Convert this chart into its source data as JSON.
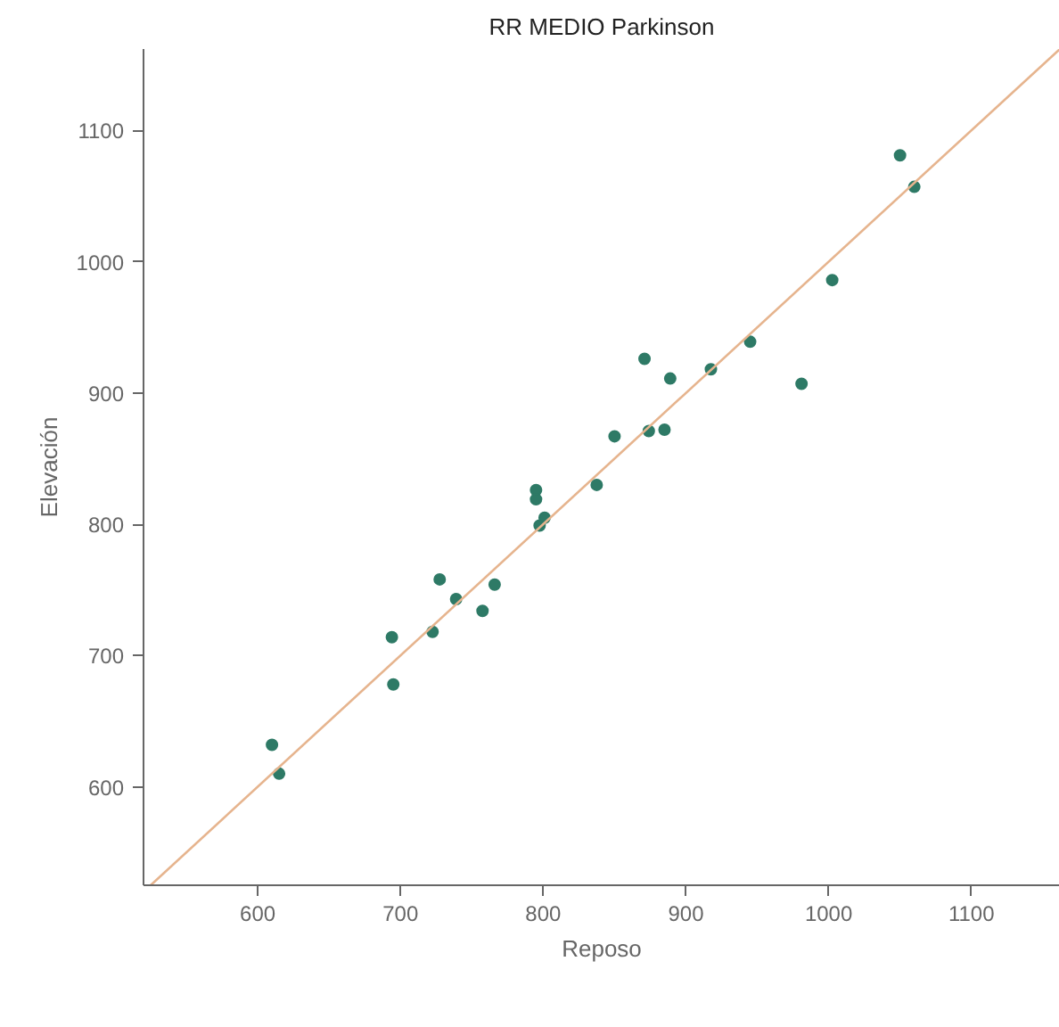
{
  "chart_data": {
    "type": "scatter",
    "title": "RR MEDIO Parkinson",
    "xlabel": "Reposo",
    "ylabel": "Elevación",
    "xlim": [
      520,
      1162
    ],
    "ylim": [
      525,
      1162
    ],
    "xticks": [
      600,
      700,
      800,
      900,
      1000,
      1100
    ],
    "yticks": [
      600,
      700,
      800,
      900,
      1000,
      1100
    ],
    "grid": false,
    "marker": "circle",
    "series": [
      {
        "color": "#2e7a66",
        "x": [
          610,
          615,
          694,
          695,
          722.5,
          727.5,
          739,
          757.5,
          766,
          795,
          795,
          797.5,
          801,
          837.5,
          850,
          871,
          874,
          885,
          889,
          917.5,
          945,
          981,
          1002.5,
          1050,
          1060
        ],
        "values": [
          632,
          610,
          714,
          678,
          718,
          758,
          743,
          734,
          754,
          826,
          819,
          799,
          805,
          830,
          867,
          926,
          871,
          872,
          911,
          918,
          939,
          907,
          986,
          1081,
          1057
        ]
      },
      {
        "type": "line",
        "marker": "none",
        "color": "#e6b48e",
        "x": [
          525,
          1162
        ],
        "values": [
          525,
          1162
        ]
      }
    ]
  }
}
